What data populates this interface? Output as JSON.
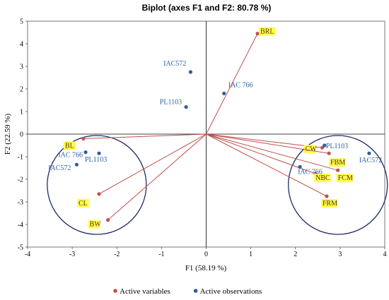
{
  "chart_data": {
    "type": "scatter",
    "title": "Biplot (axes F1 and F2: 80.78 %)",
    "xlabel": "F1 (58.19 %)",
    "ylabel": "F2 (22.59 %)",
    "xlim": [
      -4,
      4
    ],
    "ylim": [
      -5,
      5
    ],
    "xticks": [
      "-4",
      "-3",
      "-2",
      "-1",
      "0",
      "1",
      "2",
      "3",
      "4"
    ],
    "yticks": [
      "-5",
      "-4",
      "-3",
      "-2",
      "-1",
      "0",
      "1",
      "2",
      "3",
      "4",
      "5"
    ],
    "legend_position": "bottom",
    "grid": false,
    "series": [
      {
        "name": "Active variables",
        "color": "#c0504d",
        "kind": "vectors",
        "points": [
          {
            "label": "BRL",
            "x": 1.15,
            "y": 4.45
          },
          {
            "label": "BL",
            "x": -2.75,
            "y": -0.2
          },
          {
            "label": "CL",
            "x": -2.4,
            "y": -2.65
          },
          {
            "label": "BW",
            "x": -2.2,
            "y": -3.8
          },
          {
            "label": "CW",
            "x": 2.6,
            "y": -0.6
          },
          {
            "label": "FBM",
            "x": 2.75,
            "y": -0.85
          },
          {
            "label": "NBC",
            "x": 2.45,
            "y": -1.75
          },
          {
            "label": "FCM",
            "x": 2.95,
            "y": -1.6
          },
          {
            "label": "FRM",
            "x": 2.7,
            "y": -2.75
          }
        ]
      },
      {
        "name": "Active observations",
        "color": "#2e5f9e",
        "kind": "points",
        "points": [
          {
            "label": "IAC572",
            "x": -0.35,
            "y": 2.75
          },
          {
            "label": "PL1103",
            "x": -0.45,
            "y": 1.2
          },
          {
            "label": "IAC 766",
            "x": 0.4,
            "y": 1.8
          },
          {
            "label": "IAC 766",
            "x": -2.7,
            "y": -0.8
          },
          {
            "label": "PL1103",
            "x": -2.4,
            "y": -0.85
          },
          {
            "label": "IAC572",
            "x": -2.9,
            "y": -1.35
          },
          {
            "label": "PL1103",
            "x": 2.65,
            "y": -0.5
          },
          {
            "label": "IAC572",
            "x": 3.65,
            "y": -0.85
          },
          {
            "label": "IAC 766",
            "x": 2.1,
            "y": -1.45
          }
        ]
      }
    ],
    "clusters": [
      {
        "cx": -2.45,
        "cy": -2.25
      },
      {
        "cx": 2.95,
        "cy": -2.25
      }
    ]
  }
}
